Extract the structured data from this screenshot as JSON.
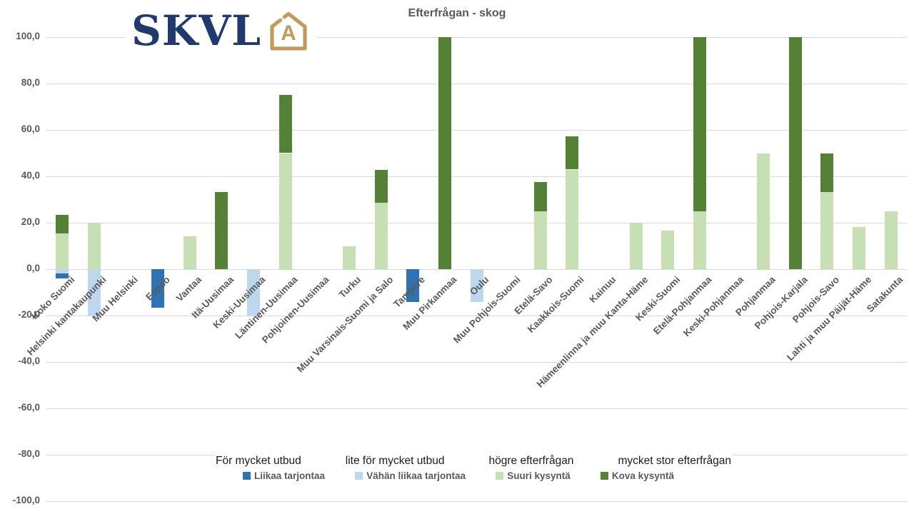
{
  "header": {
    "logo_text": "SKVL",
    "title": "Efterfrågan - skog"
  },
  "colors": {
    "liikaa_dark_blue": "#2e74b5",
    "vahan_light_blue": "#bdd7ee",
    "suuri_light_green": "#c6e0b4",
    "kova_dark_green": "#548235",
    "gridline": "#d9d9d9",
    "axis_text": "#595959",
    "logo_navy": "#1e3a6e",
    "logo_gold": "#c49a58"
  },
  "chart_data": {
    "type": "bar",
    "stacked": true,
    "title": "Efterfrågan - skog",
    "xlabel": "",
    "ylabel": "",
    "ylim": [
      -100,
      100
    ],
    "ytick_step": 20,
    "ytick_labels": [
      "100,0",
      "80,0",
      "60,0",
      "40,0",
      "20,0",
      "0,0",
      "-20,0",
      "-40,0",
      "-60,0",
      "-80,0",
      "-100,0"
    ],
    "grid": true,
    "legend_position": "bottom",
    "categories": [
      "Koko Suomi",
      "Helsinki kantakaupunki",
      "Muu Helsinki",
      "Espoo",
      "Vantaa",
      "Itä-Uusimaa",
      "Keski-Uusimaa",
      "Läntinen-Uusimaa",
      "Pohjoinen-Uusimaa",
      "Turku",
      "Muu Varsinais-Suomi ja Salo",
      "Tampere",
      "Muu Pirkanmaa",
      "Oulu",
      "Muu Pohjois-Suomi",
      "Etelä-Savo",
      "Kaakkois-Suomi",
      "Kainuu",
      "Hämeenlinna ja muu Kanta-Häme",
      "Keski-Suomi",
      "Etelä-Pohjanmaa",
      "Keski-Pohjanmaa",
      "Pohjanmaa",
      "Pohjois-Karjala",
      "Pohjois-Savo",
      "Lahti ja muu Päijät-Häme",
      "Satakunta"
    ],
    "series": [
      {
        "name": "Liikaa tarjontaa",
        "color": "#2e74b5",
        "values": [
          -2.3,
          0,
          0,
          -16.7,
          0,
          0,
          0,
          0,
          0,
          0,
          0,
          -14,
          0,
          0,
          0,
          0,
          0,
          0,
          0,
          0,
          0,
          0,
          0,
          0,
          0,
          0,
          0
        ]
      },
      {
        "name": "Vähän liikaa tarjontaa",
        "color": "#bdd7ee",
        "values": [
          -1.9,
          -20,
          0,
          0,
          0,
          0,
          -20,
          0,
          0,
          0,
          0,
          0,
          0,
          -14,
          0,
          0,
          0,
          0,
          0,
          0,
          0,
          0,
          0,
          0,
          0,
          0,
          0
        ]
      },
      {
        "name": "Suuri kysyntä",
        "color": "#c6e0b4",
        "values": [
          15.4,
          20,
          0,
          0,
          14.3,
          0,
          0,
          50,
          0,
          10,
          28.6,
          0,
          0,
          0,
          0,
          25,
          42.9,
          0,
          20,
          16.7,
          25,
          0,
          50,
          0,
          33.3,
          18.2,
          25
        ]
      },
      {
        "name": "Kova kysyntä",
        "color": "#548235",
        "values": [
          7.9,
          0,
          0,
          0,
          0,
          33.3,
          0,
          25,
          0,
          0,
          14.3,
          0,
          100,
          0,
          0,
          12.5,
          14.3,
          0,
          0,
          0,
          75,
          0,
          0,
          100,
          16.7,
          0,
          0
        ]
      }
    ]
  },
  "legend": {
    "swedish_labels": [
      "För mycket utbud",
      "lite för mycket utbud",
      "högre efterfrågan",
      "mycket stor efterfrågan"
    ],
    "items": [
      {
        "label": "Liikaa tarjontaa",
        "color": "#2e74b5"
      },
      {
        "label": "Vähän liikaa tarjontaa",
        "color": "#bdd7ee"
      },
      {
        "label": "Suuri kysyntä",
        "color": "#c6e0b4"
      },
      {
        "label": "Kova kysyntä",
        "color": "#548235"
      }
    ]
  }
}
